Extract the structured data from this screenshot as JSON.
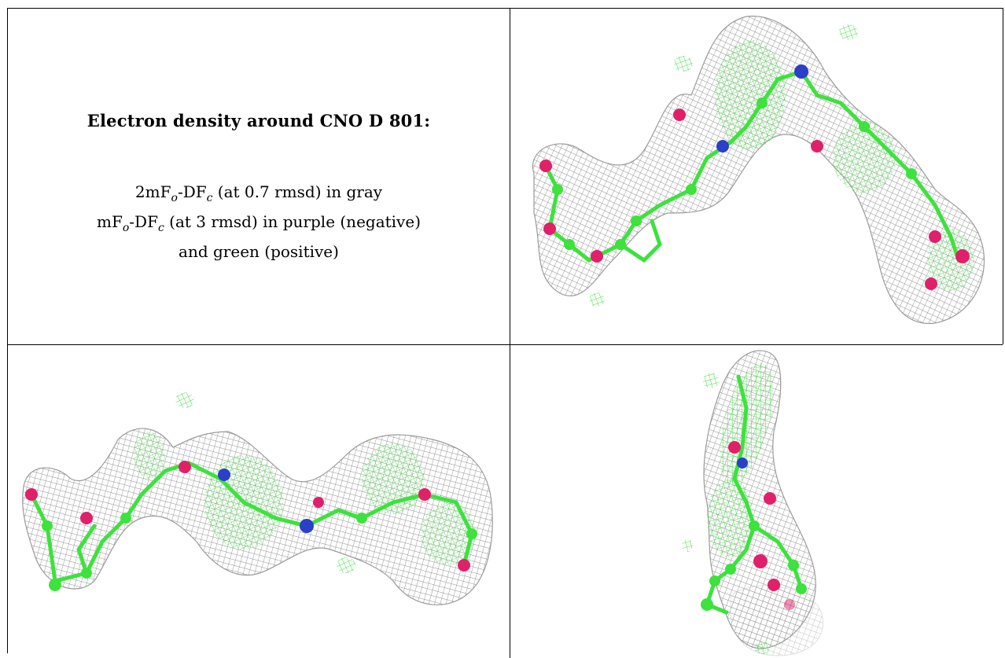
{
  "caption": {
    "title": "Electron density around CNO D 801:",
    "line1_prefix": "2mF",
    "line1_sub_o": "o",
    "line1_mid": "-DF",
    "line1_sub_c": "c",
    "line1_suffix": " (at 0.7 rmsd) in gray",
    "line2_prefix": "mF",
    "line2_sub_o": "o",
    "line2_mid": "-DF",
    "line2_sub_c": "c",
    "line2_suffix": " (at 3 rmsd) in purple (negative)",
    "line3": "and green (positive)"
  },
  "colors": {
    "mesh_gray": "#a9a9a9",
    "carbon_green": "#3de23d",
    "positive_density_green": "#4be94b",
    "oxygen": "#e0206a",
    "nitrogen": "#2b3fc9"
  },
  "panels": [
    {
      "view": "top-right",
      "content": "ligand-with-density-mesh"
    },
    {
      "view": "bottom-left",
      "content": "ligand-with-density-mesh"
    },
    {
      "view": "bottom-right",
      "content": "ligand-with-density-mesh"
    }
  ]
}
